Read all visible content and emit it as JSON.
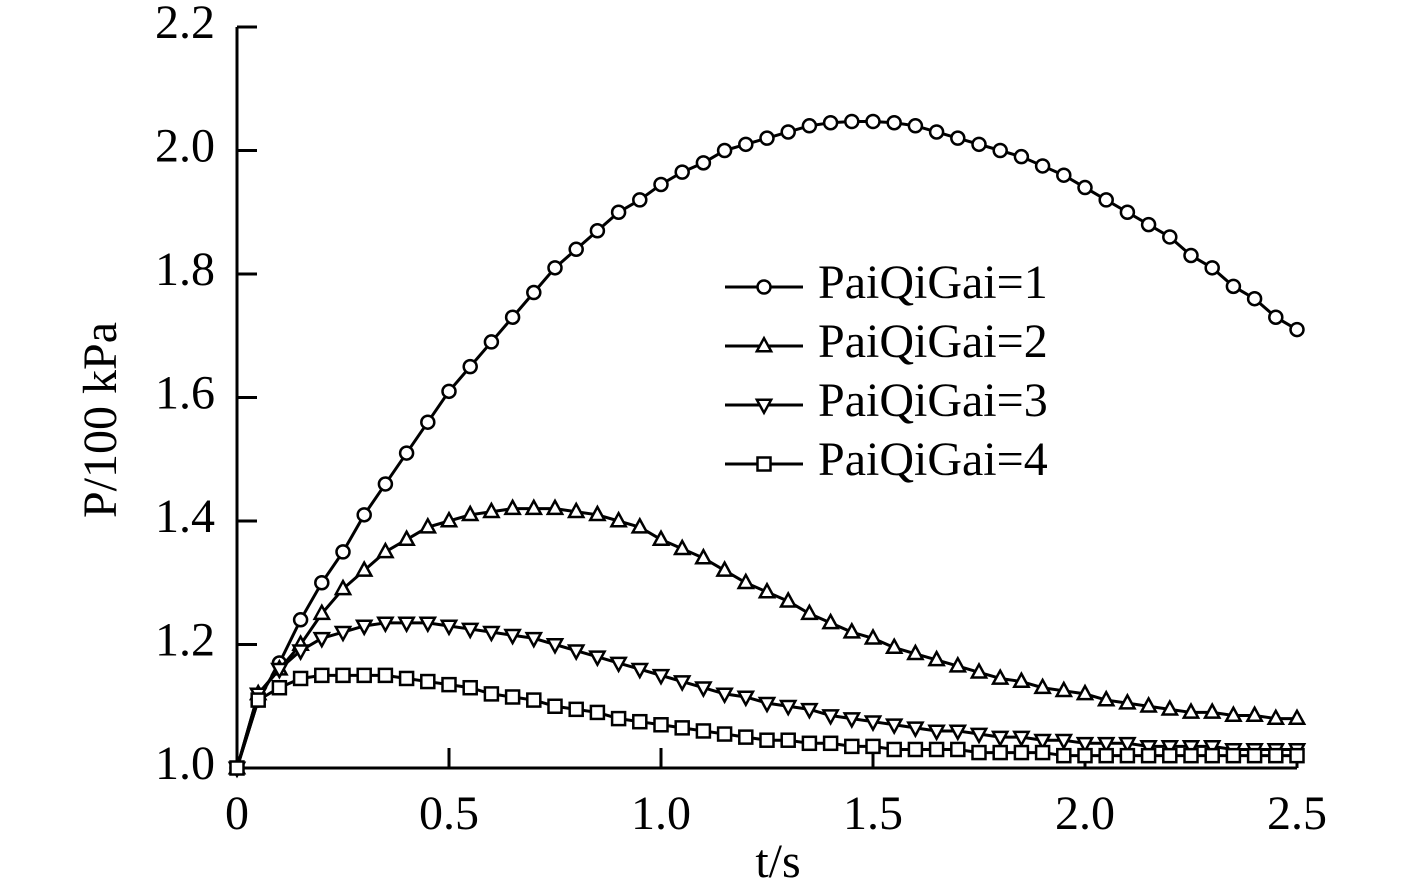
{
  "chart_data": {
    "type": "line",
    "xlabel": "t/s",
    "ylabel": "P/100 kPa",
    "x": [
      0,
      0.05,
      0.1,
      0.15,
      0.2,
      0.25,
      0.3,
      0.35,
      0.4,
      0.45,
      0.5,
      0.55,
      0.6,
      0.65,
      0.7,
      0.75,
      0.8,
      0.85,
      0.9,
      0.95,
      1.0,
      1.05,
      1.1,
      1.15,
      1.2,
      1.25,
      1.3,
      1.35,
      1.4,
      1.45,
      1.5,
      1.55,
      1.6,
      1.65,
      1.7,
      1.75,
      1.8,
      1.85,
      1.9,
      1.95,
      2.0,
      2.05,
      2.1,
      2.15,
      2.2,
      2.25,
      2.3,
      2.35,
      2.4,
      2.45,
      2.5
    ],
    "xlim": [
      0,
      2.5
    ],
    "xticks": [
      0,
      0.5,
      {
        "value": 1,
        "label": "1.0"
      },
      1.5,
      {
        "value": 2,
        "label": "2.0"
      },
      2.5
    ],
    "ylim": [
      1,
      2.2
    ],
    "yticks": [
      {
        "value": 1,
        "label": "1.0"
      },
      1.2,
      1.4,
      1.6,
      1.8,
      {
        "value": 2,
        "label": "2.0"
      },
      2.2
    ],
    "series": [
      {
        "name": "PaiQiGai=1",
        "color": "#000000",
        "marker": "circle",
        "values": [
          1.0,
          1.11,
          1.17,
          1.24,
          1.3,
          1.35,
          1.41,
          1.46,
          1.51,
          1.56,
          1.61,
          1.65,
          1.69,
          1.73,
          1.77,
          1.81,
          1.84,
          1.87,
          1.9,
          1.92,
          1.945,
          1.965,
          1.98,
          2.0,
          2.01,
          2.02,
          2.03,
          2.04,
          2.045,
          2.047,
          2.047,
          2.045,
          2.04,
          2.03,
          2.02,
          2.01,
          2.0,
          1.99,
          1.975,
          1.96,
          1.94,
          1.92,
          1.9,
          1.88,
          1.86,
          1.83,
          1.81,
          1.78,
          1.76,
          1.73,
          1.71
        ]
      },
      {
        "name": "PaiQiGai=2",
        "color": "#000000",
        "marker": "triangle-up",
        "values": [
          1.0,
          1.12,
          1.16,
          1.2,
          1.25,
          1.29,
          1.32,
          1.35,
          1.37,
          1.39,
          1.4,
          1.41,
          1.415,
          1.42,
          1.42,
          1.42,
          1.415,
          1.41,
          1.4,
          1.39,
          1.37,
          1.355,
          1.34,
          1.32,
          1.3,
          1.285,
          1.27,
          1.25,
          1.235,
          1.22,
          1.21,
          1.195,
          1.185,
          1.175,
          1.165,
          1.155,
          1.145,
          1.14,
          1.13,
          1.125,
          1.12,
          1.11,
          1.105,
          1.1,
          1.095,
          1.09,
          1.09,
          1.085,
          1.085,
          1.08,
          1.08
        ]
      },
      {
        "name": "PaiQiGai=3",
        "color": "#000000",
        "marker": "triangle-down",
        "values": [
          1.0,
          1.12,
          1.16,
          1.19,
          1.21,
          1.22,
          1.23,
          1.235,
          1.235,
          1.235,
          1.23,
          1.225,
          1.22,
          1.215,
          1.21,
          1.2,
          1.19,
          1.18,
          1.17,
          1.16,
          1.15,
          1.14,
          1.13,
          1.12,
          1.115,
          1.105,
          1.1,
          1.095,
          1.085,
          1.08,
          1.075,
          1.07,
          1.065,
          1.06,
          1.06,
          1.055,
          1.05,
          1.05,
          1.045,
          1.045,
          1.04,
          1.04,
          1.04,
          1.035,
          1.035,
          1.035,
          1.035,
          1.03,
          1.03,
          1.03,
          1.03
        ]
      },
      {
        "name": "PaiQiGai=4",
        "color": "#000000",
        "marker": "square",
        "values": [
          1.0,
          1.11,
          1.13,
          1.145,
          1.15,
          1.15,
          1.15,
          1.15,
          1.145,
          1.14,
          1.135,
          1.13,
          1.12,
          1.115,
          1.11,
          1.1,
          1.095,
          1.09,
          1.08,
          1.075,
          1.07,
          1.065,
          1.06,
          1.055,
          1.05,
          1.045,
          1.045,
          1.04,
          1.04,
          1.035,
          1.035,
          1.03,
          1.03,
          1.03,
          1.03,
          1.025,
          1.025,
          1.025,
          1.025,
          1.02,
          1.02,
          1.02,
          1.02,
          1.02,
          1.02,
          1.02,
          1.02,
          1.02,
          1.02,
          1.02,
          1.02
        ]
      }
    ]
  }
}
